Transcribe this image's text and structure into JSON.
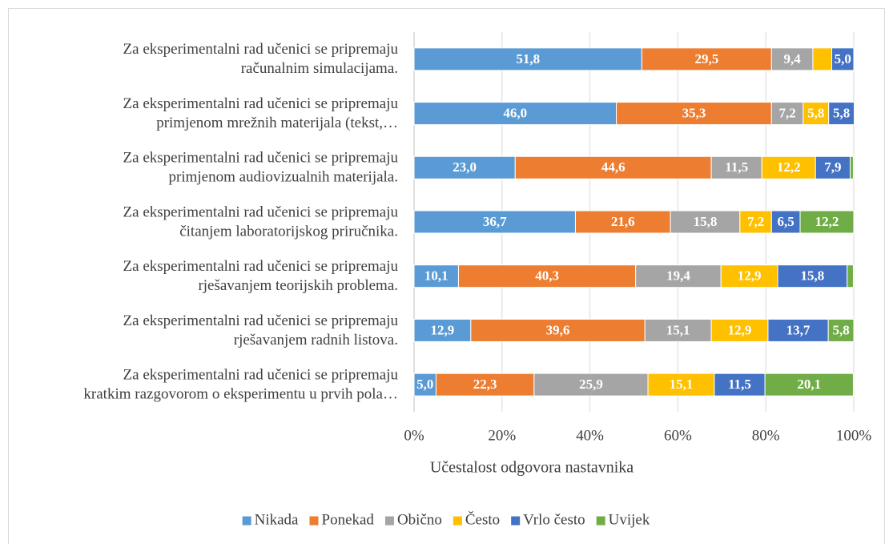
{
  "chart_data": {
    "type": "stacked_barh",
    "categories": [
      [
        "Za eksperimentalni rad učenici se pripremaju",
        "računalnim simulacijama."
      ],
      [
        "Za eksperimentalni rad učenici se pripremaju",
        "primjenom mrežnih materijala (tekst,…"
      ],
      [
        "Za eksperimentalni rad učenici se pripremaju",
        "primjenom audiovizualnih materijala."
      ],
      [
        "Za eksperimentalni rad učenici se pripremaju",
        "čitanjem laboratorijskog priručnika."
      ],
      [
        "Za eksperimentalni rad učenici se pripremaju",
        "rješavanjem teorijskih problema."
      ],
      [
        "Za eksperimentalni rad učenici se pripremaju",
        "rješavanjem radnih listova."
      ],
      [
        "Za eksperimentalni rad učenici se pripremaju",
        "kratkim razgovorom o eksperimentu u prvih pola…"
      ]
    ],
    "series": [
      {
        "name": "Nikada",
        "color": "#5b9bd5",
        "values": [
          51.8,
          46.0,
          23.0,
          36.7,
          10.1,
          12.9,
          5.0
        ],
        "value_labels": [
          "51,8",
          "46,0",
          "23,0",
          "36,7",
          "10,1",
          "12,9",
          "5,0"
        ]
      },
      {
        "name": "Ponekad",
        "color": "#ed7d31",
        "values": [
          29.5,
          35.3,
          44.6,
          21.6,
          40.3,
          39.6,
          22.3
        ],
        "value_labels": [
          "29,5",
          "35,3",
          "44,6",
          "21,6",
          "40,3",
          "39,6",
          "22,3"
        ]
      },
      {
        "name": "Obično",
        "color": "#a5a5a5",
        "values": [
          9.4,
          7.2,
          11.5,
          15.8,
          19.4,
          15.1,
          25.9
        ],
        "value_labels": [
          "9,4",
          "7,2",
          "11,5",
          "15,8",
          "19,4",
          "15,1",
          "25,9"
        ]
      },
      {
        "name": "Često",
        "color": "#ffc000",
        "values": [
          4.3,
          5.8,
          12.2,
          7.2,
          12.9,
          12.9,
          15.1
        ],
        "value_labels": [
          null,
          "5,8",
          "12,2",
          "7,2",
          "12,9",
          "12,9",
          "15,1"
        ]
      },
      {
        "name": "Vrlo često",
        "color": "#4472c4",
        "values": [
          5.0,
          5.8,
          7.9,
          6.5,
          15.8,
          13.7,
          11.5
        ],
        "value_labels": [
          "5,0",
          "5,8",
          "7,9",
          "6,5",
          "15,8",
          "13,7",
          "11,5"
        ]
      },
      {
        "name": "Uvijek",
        "color": "#70ad47",
        "values": [
          0,
          0,
          0.7,
          12.2,
          1.4,
          5.8,
          20.1
        ],
        "value_labels": [
          null,
          null,
          null,
          "12,2",
          null,
          "5,8",
          "20,1"
        ]
      }
    ],
    "xlim": [
      0,
      100
    ],
    "xticks": [
      {
        "value": 0,
        "label": "0%"
      },
      {
        "value": 20,
        "label": "20%"
      },
      {
        "value": 40,
        "label": "40%"
      },
      {
        "value": 60,
        "label": "60%"
      },
      {
        "value": 80,
        "label": "80%"
      },
      {
        "value": 100,
        "label": "100%"
      }
    ],
    "xlabel": "Učestalost odgovora nastavnika",
    "grid": true,
    "legend": "bottom"
  }
}
